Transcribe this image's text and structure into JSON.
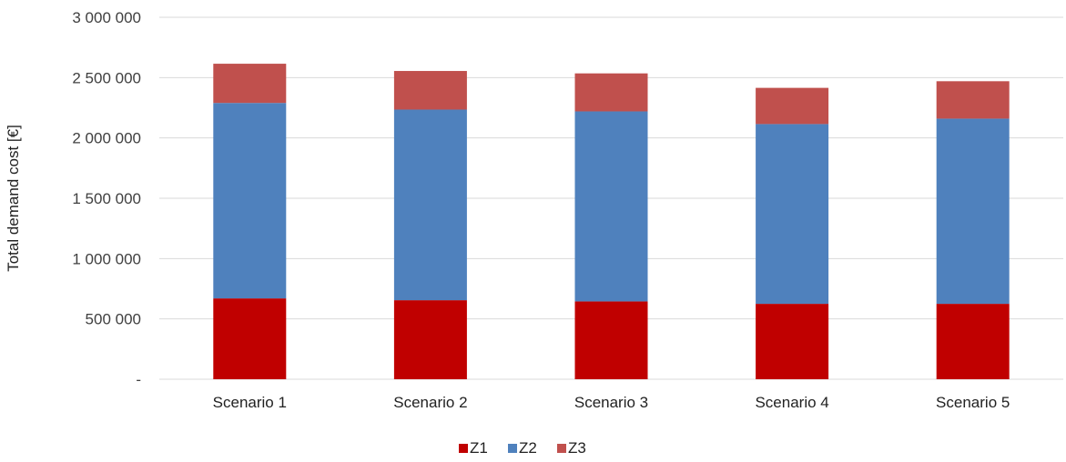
{
  "chart_data": {
    "type": "bar",
    "stacked": true,
    "title": "",
    "xlabel": "",
    "ylabel": "Total demand cost [€]",
    "categories": [
      "Scenario 1",
      "Scenario 2",
      "Scenario 3",
      "Scenario 4",
      "Scenario 5"
    ],
    "series": [
      {
        "name": "Z1",
        "color": "#c00000",
        "values": [
          670000,
          655000,
          645000,
          625000,
          625000
        ]
      },
      {
        "name": "Z2",
        "color": "#4f81bd",
        "values": [
          1620000,
          1580000,
          1575000,
          1490000,
          1535000
        ]
      },
      {
        "name": "Z3",
        "color": "#c0504d",
        "values": [
          325000,
          320000,
          315000,
          300000,
          310000
        ]
      }
    ],
    "ylim": [
      0,
      3000000
    ],
    "y_ticks": [
      {
        "value": 0,
        "label": "-"
      },
      {
        "value": 500000,
        "label": "500 000"
      },
      {
        "value": 1000000,
        "label": "1 000 000"
      },
      {
        "value": 1500000,
        "label": "1 500 000"
      },
      {
        "value": 2000000,
        "label": "2 000 000"
      },
      {
        "value": 2500000,
        "label": "2 500 000"
      },
      {
        "value": 3000000,
        "label": "3 000 000"
      }
    ],
    "grid": true,
    "legend_position": "bottom"
  }
}
